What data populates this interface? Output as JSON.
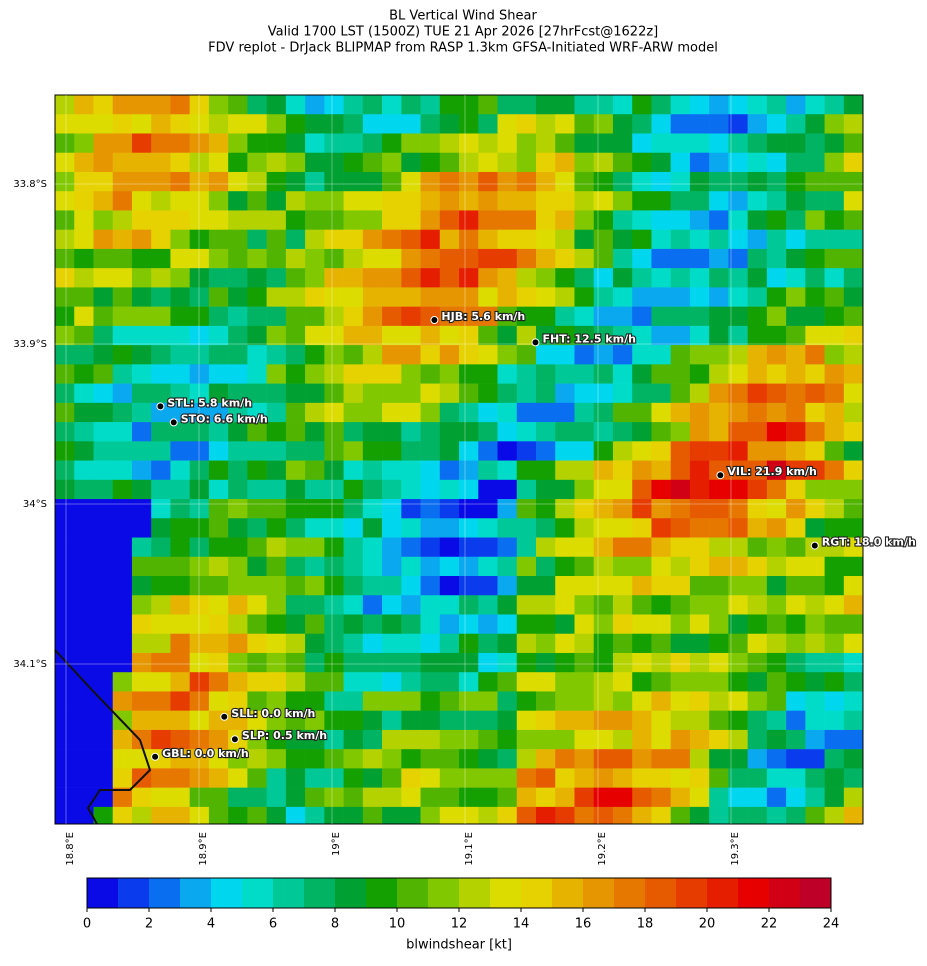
{
  "map": {
    "title_lines": [
      "BL Vertical Wind Shear",
      "Valid 1700 LST (1500Z) TUE 21 Apr 2026 [27hrFcst@1622z]",
      "FDV replot - DrJack BLIPMAP from RASP 1.3km GFSA-Initiated WRF-ARW model"
    ],
    "lat_ticks": [
      {
        "value": -33.8,
        "label": "33.8°S"
      },
      {
        "value": -33.9,
        "label": "33.9°S"
      },
      {
        "value": -34.0,
        "label": "34°S"
      },
      {
        "value": -34.1,
        "label": "34.1°S"
      }
    ],
    "lon_ticks": [
      {
        "value": 18.8,
        "label": "18.8°E"
      },
      {
        "value": 18.9,
        "label": "18.9°E"
      },
      {
        "value": 19.0,
        "label": "19°E"
      },
      {
        "value": 19.1,
        "label": "19.1°E"
      },
      {
        "value": 19.2,
        "label": "19.2°E"
      },
      {
        "value": 19.3,
        "label": "19.3°E"
      }
    ],
    "stations": [
      {
        "label": "HJB: 5.6 km/h",
        "lon": 19.077,
        "lat": -33.885
      },
      {
        "label": "FHT: 12.5 km/h",
        "lon": 19.153,
        "lat": -33.899
      },
      {
        "label": "STL: 5.8 km/h",
        "lon": 18.871,
        "lat": -33.939
      },
      {
        "label": "STO: 6.6 km/h",
        "lon": 18.881,
        "lat": -33.949
      },
      {
        "label": "VIL: 21.9 km/h",
        "lon": 19.292,
        "lat": -33.982
      },
      {
        "label": "RGT: 18.0 km/h",
        "lon": 19.363,
        "lat": -34.026
      },
      {
        "label": "SLL: 0.0 km/h",
        "lon": 18.919,
        "lat": -34.133
      },
      {
        "label": "SLP: 0.5 km/h",
        "lon": 18.927,
        "lat": -34.147
      },
      {
        "label": "GBL: 0.0 km/h",
        "lon": 18.867,
        "lat": -34.158
      }
    ],
    "colorbar": {
      "label": "blwindshear [kt]",
      "lim": [
        0,
        24
      ],
      "ticks": [
        0,
        2,
        4,
        6,
        8,
        10,
        12,
        14,
        16,
        18,
        20,
        22,
        24
      ],
      "colors": [
        "#0a0ae6",
        "#0a3ced",
        "#0a6ef0",
        "#0aa8ee",
        "#00d6ee",
        "#00dcc8",
        "#00c896",
        "#00b464",
        "#00a032",
        "#14a000",
        "#50b400",
        "#82c800",
        "#b4d200",
        "#dcdc00",
        "#e6d200",
        "#e6b400",
        "#e69600",
        "#e67800",
        "#e65a00",
        "#e63c00",
        "#e61e00",
        "#e60000",
        "#d20014",
        "#be0028"
      ]
    }
  }
}
